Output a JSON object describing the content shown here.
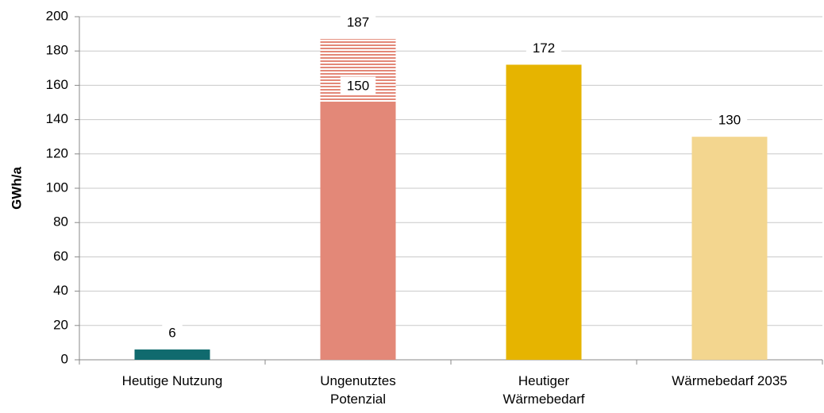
{
  "chart_data": {
    "type": "bar",
    "categories": [
      [
        "Heutige Nutzung"
      ],
      [
        "Ungenutztes",
        "Potenzial"
      ],
      [
        "Heutiger",
        "Wärmebedarf"
      ],
      [
        "Wärmebedarf 2035"
      ]
    ],
    "series": [
      {
        "colors": [
          "#106a6e",
          "#e38878",
          "#e6b400",
          "#f3d68f"
        ],
        "values": [
          6,
          150,
          172,
          130
        ]
      },
      {
        "colors": [
          null,
          "#e38878",
          null,
          null
        ],
        "pattern": "horizontal-stripes",
        "values": [
          null,
          37,
          null,
          null
        ]
      }
    ],
    "total_labels": [
      null,
      187,
      null,
      null
    ],
    "ylabel": "GWh/a",
    "ylim": [
      0,
      200
    ],
    "yticks": [
      0,
      20,
      40,
      60,
      80,
      100,
      120,
      140,
      160,
      180,
      200
    ],
    "grid": true
  }
}
